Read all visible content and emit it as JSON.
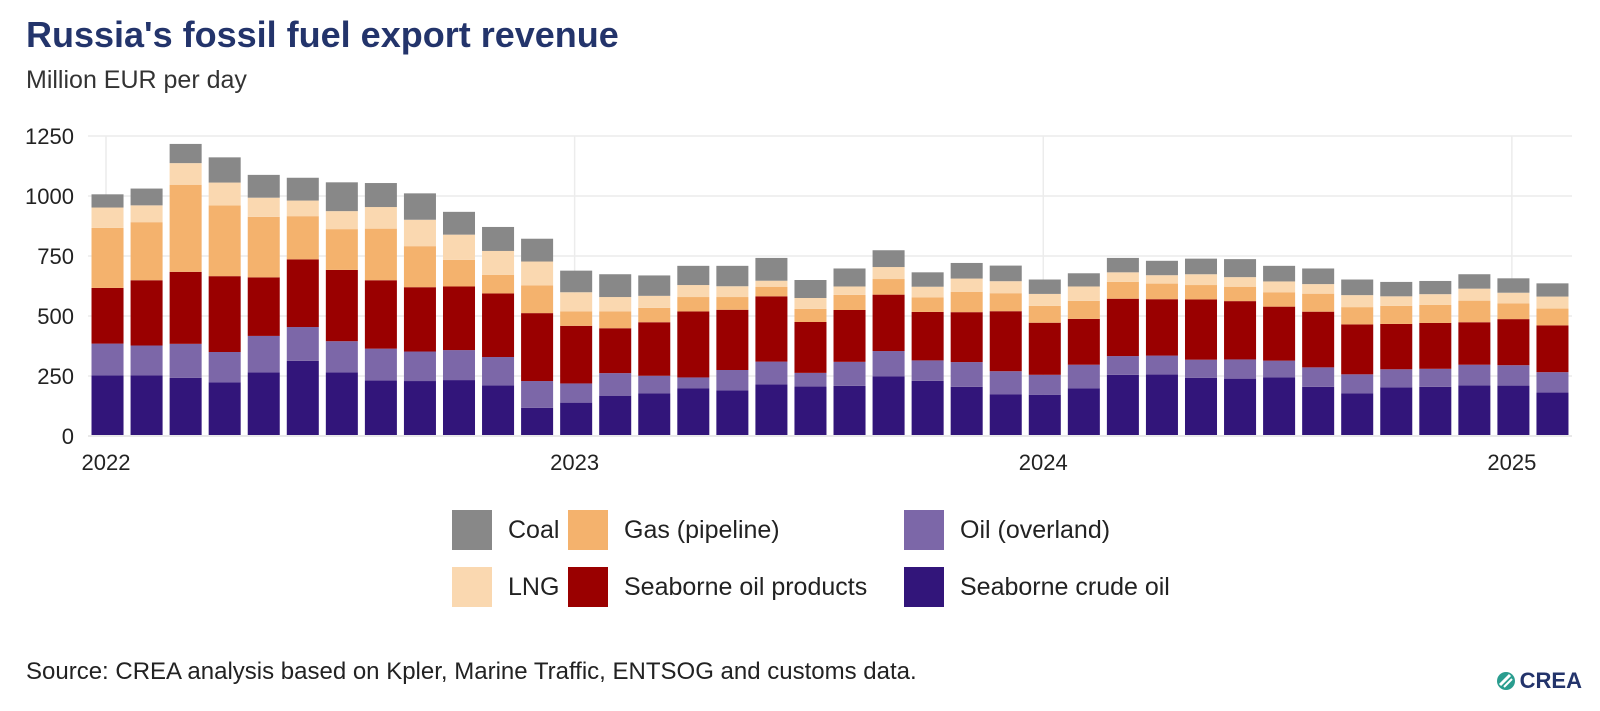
{
  "chart_data": {
    "type": "bar",
    "stacked": true,
    "title": "Russia's fossil fuel export revenue",
    "subtitle": "Million EUR per day",
    "ylabel": "Million EUR per day",
    "xlabel": "",
    "ylim": [
      0,
      1250
    ],
    "yticks": [
      0,
      250,
      500,
      750,
      1000,
      1250
    ],
    "grid": true,
    "x_tick_labels": [
      {
        "label": "2022",
        "month_index": 0
      },
      {
        "label": "2023",
        "month_index": 12
      },
      {
        "label": "2024",
        "month_index": 24
      },
      {
        "label": "2025",
        "month_index": 36
      }
    ],
    "months": [
      "2022-01",
      "2022-02",
      "2022-03",
      "2022-04",
      "2022-05",
      "2022-06",
      "2022-07",
      "2022-08",
      "2022-09",
      "2022-10",
      "2022-11",
      "2022-12",
      "2023-01",
      "2023-02",
      "2023-03",
      "2023-04",
      "2023-05",
      "2023-06",
      "2023-07",
      "2023-08",
      "2023-09",
      "2023-10",
      "2023-11",
      "2023-12",
      "2024-01",
      "2024-02",
      "2024-03",
      "2024-04",
      "2024-05",
      "2024-06",
      "2024-07",
      "2024-08",
      "2024-09",
      "2024-10",
      "2024-11",
      "2024-12",
      "2025-01",
      "2025-02"
    ],
    "series": [
      {
        "name": "Seaborne crude oil",
        "color": "#32157a",
        "values": [
          253,
          252,
          242,
          224,
          265,
          313,
          265,
          231,
          229,
          233,
          211,
          117,
          139,
          168,
          177,
          198,
          190,
          215,
          206,
          209,
          249,
          230,
          205,
          173,
          172,
          199,
          255,
          256,
          242,
          239,
          244,
          205,
          177,
          203,
          205,
          211,
          210,
          181
        ]
      },
      {
        "name": "Oil (overland)",
        "color": "#7c67a8",
        "values": [
          132,
          125,
          142,
          126,
          152,
          141,
          130,
          133,
          123,
          125,
          118,
          112,
          80,
          94,
          74,
          46,
          85,
          95,
          57,
          100,
          105,
          85,
          103,
          97,
          83,
          98,
          78,
          79,
          76,
          80,
          70,
          81,
          80,
          75,
          75,
          86,
          85,
          85
        ]
      },
      {
        "name": "Seaborne oil products",
        "color": "#9a0000",
        "values": [
          232,
          272,
          300,
          316,
          244,
          282,
          297,
          285,
          268,
          265,
          265,
          283,
          240,
          187,
          223,
          275,
          251,
          272,
          212,
          216,
          235,
          202,
          208,
          250,
          217,
          191,
          239,
          235,
          251,
          243,
          225,
          232,
          208,
          189,
          191,
          177,
          192,
          195
        ]
      },
      {
        "name": "Gas (pipeline)",
        "color": "#f4b26d",
        "values": [
          250,
          242,
          363,
          295,
          252,
          180,
          170,
          215,
          171,
          111,
          77,
          115,
          60,
          70,
          60,
          60,
          53,
          40,
          55,
          63,
          65,
          60,
          85,
          75,
          70,
          75,
          70,
          65,
          60,
          60,
          60,
          75,
          72,
          75,
          75,
          90,
          65,
          70
        ]
      },
      {
        "name": "LNG",
        "color": "#fad8b0",
        "values": [
          85,
          70,
          90,
          95,
          80,
          65,
          75,
          90,
          110,
          105,
          100,
          100,
          80,
          60,
          50,
          50,
          45,
          25,
          45,
          35,
          50,
          45,
          55,
          50,
          50,
          60,
          40,
          35,
          45,
          40,
          45,
          40,
          50,
          40,
          45,
          50,
          45,
          50
        ]
      },
      {
        "name": "Coal",
        "color": "#888888",
        "values": [
          55,
          70,
          80,
          105,
          95,
          95,
          120,
          100,
          110,
          95,
          100,
          95,
          90,
          95,
          85,
          80,
          85,
          95,
          75,
          75,
          70,
          60,
          65,
          65,
          60,
          55,
          60,
          60,
          65,
          75,
          65,
          65,
          65,
          60,
          55,
          60,
          60,
          55
        ]
      }
    ]
  },
  "legend": {
    "items": [
      {
        "label": "Coal",
        "color": "#888888"
      },
      {
        "label": "Gas (pipeline)",
        "color": "#f4b26d"
      },
      {
        "label": "Oil (overland)",
        "color": "#7c67a8"
      },
      {
        "label": "LNG",
        "color": "#fad8b0"
      },
      {
        "label": "Seaborne oil products",
        "color": "#9a0000"
      },
      {
        "label": "Seaborne crude oil",
        "color": "#32157a"
      }
    ]
  },
  "source": "Source: CREA analysis based on Kpler, Marine Traffic, ENTSOG and customs data.",
  "logo": {
    "text": "CREA",
    "color": "#23346b"
  }
}
